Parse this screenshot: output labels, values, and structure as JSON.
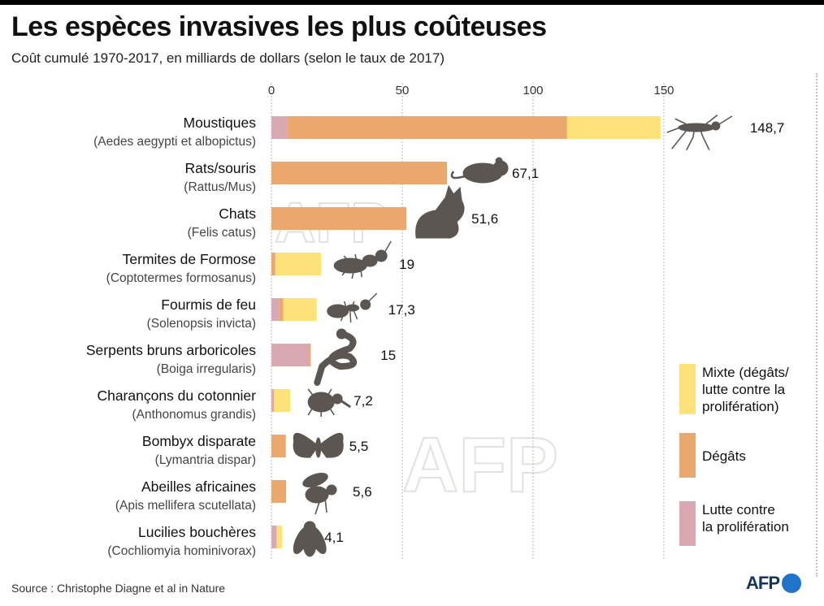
{
  "header": {
    "title": "Les espèces invasives les plus coûteuses",
    "subtitle": "Coût cumulé 1970-2017, en milliards de dollars (selon le taux de 2017)"
  },
  "footer": {
    "source": "Source : Christophe Diagne et al in Nature",
    "logo_text": "AFP"
  },
  "watermark_text": "AFP",
  "colors": {
    "mixte": "#fde27a",
    "degats": "#eaa76e",
    "lutte": "#d9a8b3",
    "grid": "#b8b0a4",
    "silhouette": "#5c5652"
  },
  "legend": [
    {
      "key": "mixte",
      "label_lines": [
        "Mixte (dégâts/",
        "lutte contre la",
        "prolifération)"
      ]
    },
    {
      "key": "degats",
      "label_lines": [
        "Dégâts"
      ]
    },
    {
      "key": "lutte",
      "label_lines": [
        "Lutte contre",
        "la prolifération"
      ]
    }
  ],
  "chart_data": {
    "type": "bar",
    "orientation": "horizontal",
    "stacked": true,
    "xlim": [
      0,
      150
    ],
    "xticks": [
      0,
      50,
      100,
      150
    ],
    "grid": "vertical dotted",
    "legend_position": "right",
    "stack_order": [
      "lutte",
      "degats",
      "mixte"
    ],
    "categories": [
      {
        "name": "Moustiques",
        "latin": "(Aedes aegypti et albopictus)",
        "total": 148.7,
        "label": "148,7",
        "icon": "mosquito-icon",
        "segments": {
          "lutte": 6,
          "degats": 107,
          "mixte": 35.7
        }
      },
      {
        "name": "Rats/souris",
        "latin": "(Rattus/Mus)",
        "total": 67.1,
        "label": "67,1",
        "icon": "rat-icon",
        "segments": {
          "lutte": 0,
          "degats": 67.1,
          "mixte": 0
        }
      },
      {
        "name": "Chats",
        "latin": "(Felis catus)",
        "total": 51.6,
        "label": "51,6",
        "icon": "cat-icon",
        "segments": {
          "lutte": 0,
          "degats": 51.6,
          "mixte": 0
        }
      },
      {
        "name": "Termites de Formose",
        "latin": "(Coptotermes formosanus)",
        "total": 19,
        "label": "19",
        "icon": "termite-icon",
        "segments": {
          "lutte": 0,
          "degats": 1.5,
          "mixte": 17.5
        }
      },
      {
        "name": "Fourmis de feu",
        "latin": "(Solenopsis invicta)",
        "total": 17.3,
        "label": "17,3",
        "icon": "ant-icon",
        "segments": {
          "lutte": 3,
          "degats": 1.5,
          "mixte": 12.8
        }
      },
      {
        "name": "Serpents bruns arboricoles",
        "latin": "(Boiga irregularis)",
        "total": 15,
        "label": "15",
        "icon": "snake-icon",
        "segments": {
          "lutte": 14.3,
          "degats": 0.7,
          "mixte": 0
        }
      },
      {
        "name": "Charançons du cotonnier",
        "latin": "(Anthonomus grandis)",
        "total": 7.2,
        "label": "7,2",
        "icon": "weevil-icon",
        "segments": {
          "lutte": 0.5,
          "degats": 0.5,
          "mixte": 6.2
        }
      },
      {
        "name": "Bombyx disparate",
        "latin": "(Lymantria dispar)",
        "total": 5.5,
        "label": "5,5",
        "icon": "moth-icon",
        "segments": {
          "lutte": 0,
          "degats": 5.5,
          "mixte": 0
        }
      },
      {
        "name": "Abeilles africaines",
        "latin": "(Apis mellifera scutellata)",
        "total": 5.6,
        "label": "5,6",
        "icon": "bee-icon",
        "segments": {
          "lutte": 0,
          "degats": 5.6,
          "mixte": 0
        }
      },
      {
        "name": "Lucilies bouchères",
        "latin": "(Cochliomyia hominivorax)",
        "total": 4.1,
        "label": "4,1",
        "icon": "fly-icon",
        "segments": {
          "lutte": 2,
          "degats": 0,
          "mixte": 2.1
        }
      }
    ]
  }
}
